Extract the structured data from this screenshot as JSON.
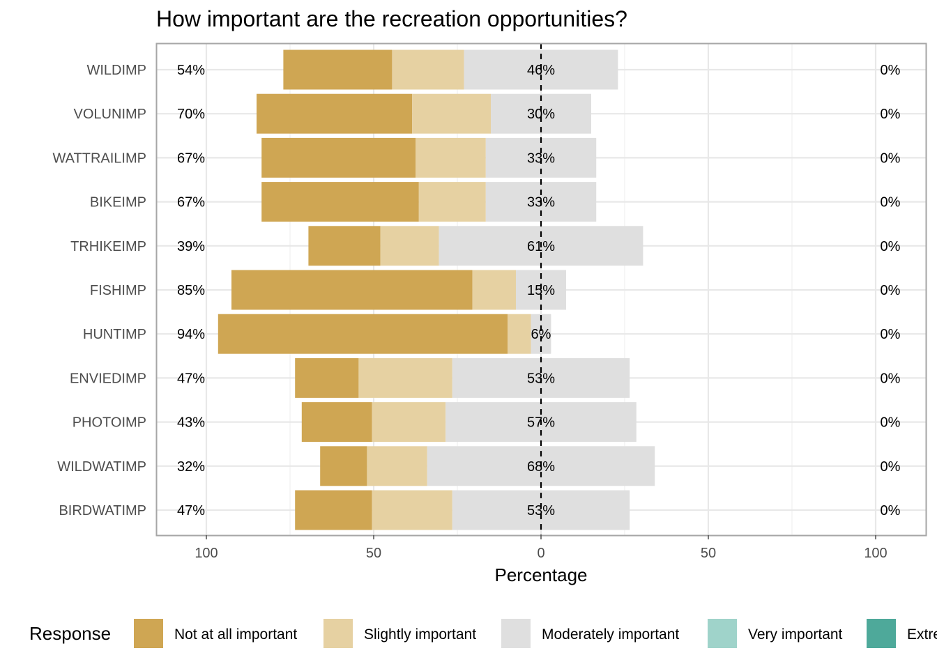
{
  "chart_data": {
    "type": "bar",
    "orientation": "horizontal",
    "stacked": true,
    "diverging": true,
    "title": "How important are the recreation opportunities?",
    "xlabel": "Percentage",
    "ylabel": "",
    "xlim": [
      -112,
      115
    ],
    "x_ticks": [
      -100,
      -50,
      0,
      50,
      100
    ],
    "x_tick_labels": [
      "100",
      "50",
      "0",
      "50",
      "100"
    ],
    "grid": true,
    "legend_position": "bottom",
    "legend_title": "Response",
    "categories": [
      "WILDIMP",
      "VOLUNIMP",
      "WATTRAILIMP",
      "BIKEIMP",
      "TRHIKEIMP",
      "FISHIMP",
      "HUNTIMP",
      "ENVIEDIMP",
      "PHOTOIMP",
      "WILDWATIMP",
      "BIRDWATIMP"
    ],
    "series": [
      {
        "name": "Not at all important",
        "color": "#cfa653",
        "values": [
          32.5,
          46.5,
          46.0,
          47.0,
          21.5,
          72.0,
          86.5,
          19.0,
          21.0,
          14.0,
          23.0
        ]
      },
      {
        "name": "Slightly important",
        "color": "#e6d1a2",
        "values": [
          21.5,
          23.5,
          21.0,
          20.0,
          17.5,
          13.0,
          7.0,
          28.0,
          22.0,
          18.0,
          24.0
        ]
      },
      {
        "name": "Moderately important",
        "color": "#dfdfdf",
        "values": [
          46.0,
          30.0,
          33.0,
          33.0,
          61.0,
          15.0,
          6.0,
          53.0,
          57.0,
          68.0,
          53.0
        ]
      },
      {
        "name": "Very important",
        "color": "#9fd3ca",
        "values": [
          0,
          0,
          0,
          0,
          0,
          0,
          0,
          0,
          0,
          0,
          0
        ]
      },
      {
        "name": "Extremely important",
        "color": "#4ea99a",
        "values": [
          0,
          0,
          0,
          0,
          0,
          0,
          0,
          0,
          0,
          0,
          0
        ]
      }
    ],
    "left_labels": [
      "54%",
      "70%",
      "67%",
      "67%",
      "39%",
      "85%",
      "94%",
      "47%",
      "43%",
      "32%",
      "47%"
    ],
    "center_labels": [
      "46%",
      "30%",
      "33%",
      "33%",
      "61%",
      "15%",
      "6%",
      "53%",
      "57%",
      "68%",
      "53%"
    ],
    "right_labels": [
      "0%",
      "0%",
      "0%",
      "0%",
      "0%",
      "0%",
      "0%",
      "0%",
      "0%",
      "0%",
      "0%"
    ],
    "legend_labels": [
      "Not at all important",
      "Slightly important",
      "Moderately important",
      "Very important",
      "Extre"
    ]
  }
}
